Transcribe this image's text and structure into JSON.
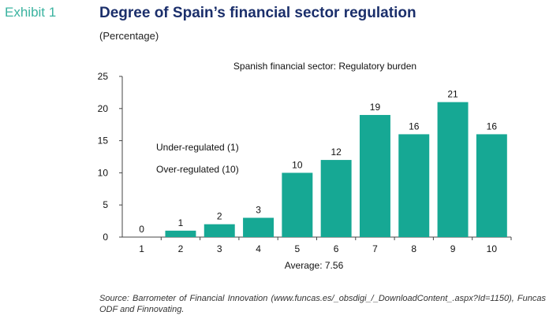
{
  "header": {
    "exhibit": "Exhibit 1",
    "title": "Degree of Spain’s financial sector regulation",
    "subtitle": "(Percentage)"
  },
  "chart_data": {
    "type": "bar",
    "title": "Spanish financial sector: Regulatory burden",
    "categories": [
      "1",
      "2",
      "3",
      "4",
      "5",
      "6",
      "7",
      "8",
      "9",
      "10"
    ],
    "values": [
      0,
      1,
      2,
      3,
      10,
      12,
      19,
      16,
      21,
      16
    ],
    "ylim": [
      0,
      25
    ],
    "yticks": [
      0,
      5,
      10,
      15,
      20,
      25
    ],
    "bar_color": "#16a894",
    "grid": false,
    "annotations": [
      "Under-regulated (1)",
      "Over-regulated (10)"
    ],
    "footnote": "Average: 7.56"
  },
  "source": "Source: Barrometer of Financial Innovation (www.funcas.es/_obsdigi_/_DownloadContent_.aspx?Id=1150), Funcas ODF and Finnovating."
}
